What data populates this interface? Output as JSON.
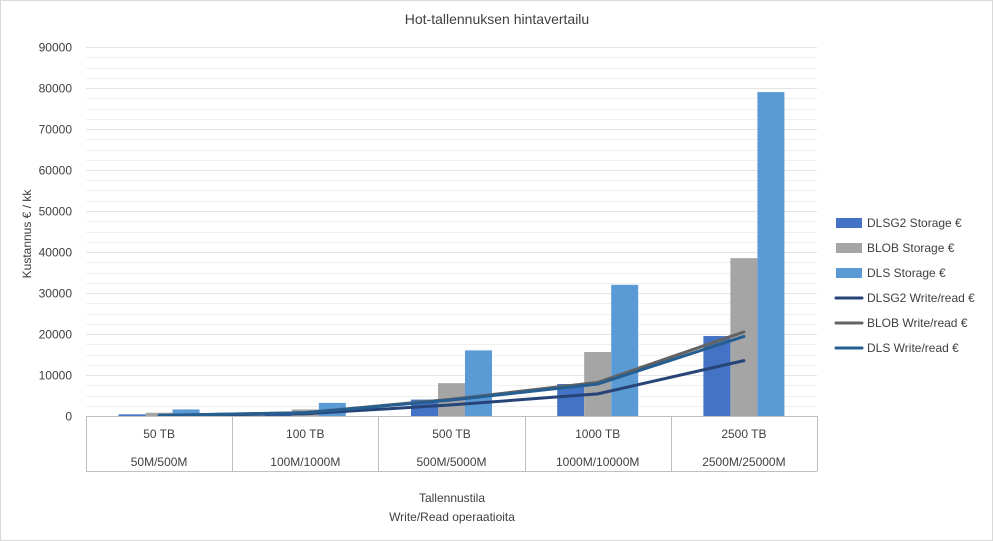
{
  "chart_data": {
    "type": "bar",
    "title": "Hot-tallennuksen hintavertailu",
    "ylabel": "Kustannus € / kk",
    "xlabel_lines": [
      "Tallennustila",
      "Write/Read operaatioita"
    ],
    "ylim": [
      0,
      90000
    ],
    "yticks": [
      0,
      10000,
      20000,
      30000,
      40000,
      50000,
      60000,
      70000,
      80000,
      90000
    ],
    "grid": true,
    "legend_position": "right",
    "categories": [
      "50 TB",
      "100 TB",
      "500 TB",
      "1000 TB",
      "2500 TB"
    ],
    "subcategories": [
      "50M/500M",
      "100M/1000M",
      "500M/5000M",
      "1000M/10000M",
      "2500M/25000M"
    ],
    "series": [
      {
        "name": "DLSG2 Storage €",
        "kind": "bar",
        "color": "#4472C4",
        "values": [
          400,
          800,
          4000,
          7800,
          19500
        ]
      },
      {
        "name": "BLOB Storage €",
        "kind": "bar",
        "color": "#A5A5A5",
        "values": [
          800,
          1600,
          8000,
          15600,
          38500
        ]
      },
      {
        "name": "DLS Storage €",
        "kind": "bar",
        "color": "#5B9BD5",
        "values": [
          1600,
          3200,
          16000,
          32000,
          79000
        ]
      },
      {
        "name": "DLSG2 Write/read €",
        "kind": "line",
        "color": "#264478",
        "values": [
          110,
          540,
          2700,
          5400,
          13500
        ]
      },
      {
        "name": "BLOB Write/read €",
        "kind": "line",
        "color": "#636363",
        "values": [
          160,
          820,
          4100,
          8200,
          20500
        ]
      },
      {
        "name": "DLS Write/read €",
        "kind": "line",
        "color": "#255E91",
        "values": [
          155,
          780,
          3900,
          7800,
          19400
        ]
      }
    ]
  }
}
